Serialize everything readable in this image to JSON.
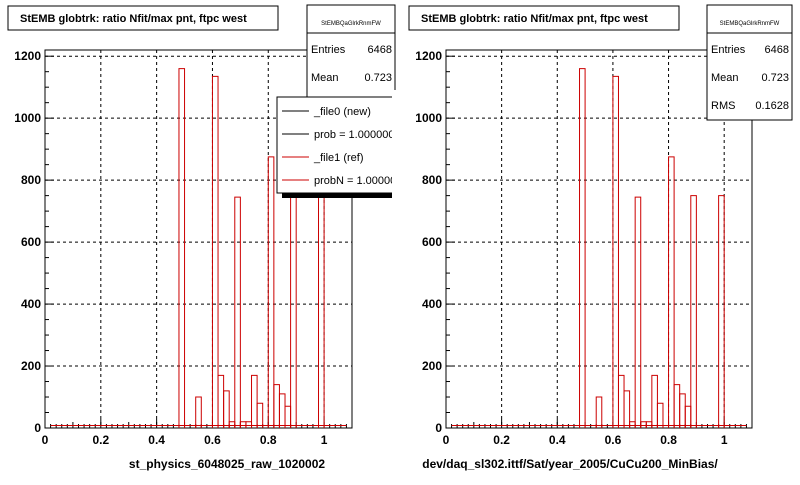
{
  "charts": [
    {
      "title": "StEMB globtrk: ratio Nfit/max pnt, ftpc west",
      "xlabel": "st_physics_6048025_raw_1020002",
      "stats": {
        "name": "StEMBQaGlrkRnmFW",
        "rows": [
          {
            "label": "Entries",
            "value": "6468"
          },
          {
            "label": "Mean",
            "value": "0.723"
          }
        ]
      },
      "legend": {
        "entries": [
          {
            "label": "_file0 (new)",
            "color": "#000000"
          },
          {
            "label": "prob = 1.000000",
            "color": "#000000"
          },
          {
            "label": "_file1 (ref)",
            "color": "#cc0000"
          },
          {
            "label": "probN = 1.000000",
            "color": "#cc0000"
          }
        ]
      }
    },
    {
      "title": "StEMB globtrk: ratio Nfit/max pnt, ftpc west",
      "xlabel": "dev/daq_sl302.ittf/Sat/year_2005/CuCu200_MinBias/",
      "stats": {
        "name": "StEMBQaGlrkRnmFW",
        "rows": [
          {
            "label": "Entries",
            "value": "6468"
          },
          {
            "label": "Mean",
            "value": "0.723"
          },
          {
            "label": "RMS",
            "value": "0.1628"
          }
        ]
      }
    }
  ],
  "chart_data": [
    {
      "type": "bar",
      "title": "StEMB globtrk: ratio Nfit/max pnt, ftpc west",
      "xlabel": "st_physics_6048025_raw_1020002",
      "xlim": [
        0,
        1.1
      ],
      "ylim": [
        0,
        1220
      ],
      "xticks": [
        0,
        0.2,
        0.4,
        0.6,
        0.8,
        1
      ],
      "yticks": [
        0,
        200,
        400,
        600,
        800,
        1000,
        1200
      ],
      "grid": true,
      "bins": [
        [
          0.48,
          0.5,
          1160
        ],
        [
          0.54,
          0.56,
          100
        ],
        [
          0.6,
          0.62,
          1135
        ],
        [
          0.62,
          0.64,
          170
        ],
        [
          0.64,
          0.66,
          120
        ],
        [
          0.66,
          0.68,
          20
        ],
        [
          0.68,
          0.7,
          745
        ],
        [
          0.7,
          0.72,
          20
        ],
        [
          0.72,
          0.74,
          20
        ],
        [
          0.74,
          0.76,
          170
        ],
        [
          0.76,
          0.78,
          80
        ],
        [
          0.8,
          0.82,
          875
        ],
        [
          0.82,
          0.84,
          140
        ],
        [
          0.84,
          0.86,
          110
        ],
        [
          0.86,
          0.88,
          70
        ],
        [
          0.88,
          0.9,
          750
        ],
        [
          0.98,
          1.0,
          750
        ]
      ],
      "series": [
        {
          "name": "_file0 (new)",
          "color": "#000000"
        },
        {
          "name": "_file1 (ref)",
          "color": "#cc0000"
        }
      ]
    },
    {
      "type": "bar",
      "title": "StEMB globtrk: ratio Nfit/max pnt, ftpc west",
      "xlabel": "dev/daq_sl302.ittf/Sat/year_2005/CuCu200_MinBias/",
      "xlim": [
        0,
        1.1
      ],
      "ylim": [
        0,
        1220
      ],
      "xticks": [
        0,
        0.2,
        0.4,
        0.6,
        0.8,
        1
      ],
      "yticks": [
        0,
        200,
        400,
        600,
        800,
        1000,
        1200
      ],
      "grid": true,
      "bins": [
        [
          0.48,
          0.5,
          1160
        ],
        [
          0.54,
          0.56,
          100
        ],
        [
          0.6,
          0.62,
          1135
        ],
        [
          0.62,
          0.64,
          170
        ],
        [
          0.64,
          0.66,
          120
        ],
        [
          0.66,
          0.68,
          20
        ],
        [
          0.68,
          0.7,
          745
        ],
        [
          0.7,
          0.72,
          20
        ],
        [
          0.72,
          0.74,
          20
        ],
        [
          0.74,
          0.76,
          170
        ],
        [
          0.76,
          0.78,
          80
        ],
        [
          0.8,
          0.82,
          875
        ],
        [
          0.82,
          0.84,
          140
        ],
        [
          0.84,
          0.86,
          110
        ],
        [
          0.86,
          0.88,
          70
        ],
        [
          0.88,
          0.9,
          750
        ],
        [
          0.98,
          1.0,
          750
        ]
      ],
      "series": [
        {
          "name": "_file1 (ref)",
          "color": "#cc0000"
        }
      ]
    }
  ]
}
